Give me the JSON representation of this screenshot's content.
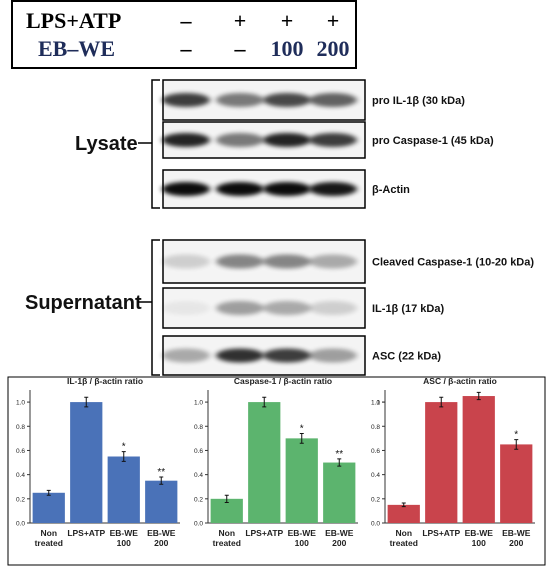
{
  "treatment": {
    "rows": [
      {
        "label": "LPS+ATP",
        "cells": [
          "–",
          "+",
          "+",
          "+"
        ]
      },
      {
        "label": "EB–WE",
        "cells": [
          "–",
          "–",
          "100",
          "200"
        ]
      }
    ]
  },
  "lysate": {
    "label": "Lysate",
    "blots": [
      "pro IL-1β (30 kDa)",
      "pro Caspase-1 (45 kDa)",
      "β-Actin"
    ]
  },
  "supernatant": {
    "label": "Supernatant",
    "blots": [
      "Cleaved Caspase-1 (10-20 kDa)",
      "IL-1β (17 kDa)",
      "ASC (22 kDa)"
    ]
  },
  "chart_data": [
    {
      "type": "bar",
      "title": "IL-1β / β-actin ratio",
      "categories": [
        "Non treated",
        "LPS+ATP",
        "EB-WE 100",
        "EB-WE 200"
      ],
      "values": [
        0.25,
        1.0,
        0.55,
        0.35
      ],
      "errors": [
        0.02,
        0.04,
        0.04,
        0.03
      ],
      "significance": [
        null,
        null,
        "*",
        "**"
      ],
      "color": "#4a72b8",
      "ylim": [
        0,
        1.1
      ],
      "yticks": [
        {
          "value": 0,
          "label": "0.0"
        },
        0.2,
        0.4,
        0.6,
        0.8,
        {
          "value": 1,
          "label": "1.0"
        }
      ]
    },
    {
      "type": "bar",
      "title": "Caspase-1 / β-actin ratio",
      "categories": [
        "Non treated",
        "LPS+ATP",
        "EB-WE 100",
        "EB-WE 200"
      ],
      "values": [
        0.2,
        1.0,
        0.7,
        0.5
      ],
      "errors": [
        0.03,
        0.04,
        0.04,
        0.03
      ],
      "significance": [
        null,
        null,
        "*",
        "**"
      ],
      "color": "#5cb46e",
      "ylim": [
        0,
        1.1
      ],
      "yticks": [
        {
          "value": 0,
          "label": "0.0"
        },
        0.2,
        0.4,
        0.6,
        0.8,
        {
          "value": 1,
          "label": "1.0"
        }
      ]
    },
    {
      "type": "bar",
      "title": "ASC / β-actin ratio",
      "categories": [
        "Non treated",
        "LPS+ATP",
        "EB-WE 100",
        "EB-WE 200"
      ],
      "values": [
        0.15,
        1.0,
        1.05,
        0.65
      ],
      "errors": [
        0.015,
        0.04,
        0.03,
        0.04
      ],
      "significance": [
        null,
        null,
        null,
        "*"
      ],
      "color": "#c9444c",
      "ylim": [
        0,
        1.1
      ],
      "yticks": [
        {
          "value": 0,
          "label": "0.0"
        },
        0.2,
        0.4,
        0.6,
        0.8,
        {
          "value": 1,
          "label": "1.0"
        },
        1.0
      ]
    }
  ]
}
